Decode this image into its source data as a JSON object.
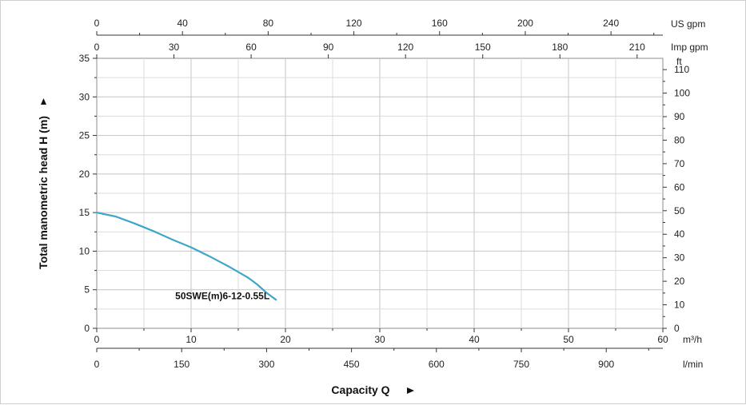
{
  "chart_data": {
    "type": "line",
    "ylabel": "Total manometric head H (m)",
    "xlabel": "Capacity Q",
    "grid": true,
    "xlim": [
      0,
      60
    ],
    "ylim": [
      0,
      35
    ],
    "x_ticks": [
      "0",
      "10",
      "20",
      "30",
      "40",
      "50",
      "60"
    ],
    "y_ticks": [
      "0",
      "5",
      "10",
      "15",
      "20",
      "25",
      "30",
      "35"
    ],
    "secondary_axes": {
      "us_gpm": {
        "unit": "US gpm",
        "max": 264.2,
        "ticks": [
          "0",
          "40",
          "80",
          "120",
          "160",
          "200",
          "240"
        ]
      },
      "imp_gpm": {
        "unit": "Imp gpm",
        "max": 220,
        "ticks": [
          "0",
          "30",
          "60",
          "90",
          "120",
          "150",
          "180",
          "210"
        ]
      },
      "m3h": {
        "unit": "m³/h"
      },
      "lmin": {
        "unit": "l/min",
        "max": 1000,
        "ticks": [
          "0",
          "150",
          "300",
          "450",
          "600",
          "750",
          "900"
        ]
      },
      "ft": {
        "unit": "ft",
        "max": 114.8,
        "ticks": [
          "0",
          "10",
          "20",
          "30",
          "40",
          "50",
          "60",
          "70",
          "80",
          "90",
          "100",
          "110"
        ]
      }
    },
    "series": [
      {
        "name": "50SWE(m)6-12-0.55L",
        "color": "#3ea6c8",
        "x": [
          0,
          2,
          4,
          6,
          8,
          10,
          12,
          14,
          16,
          17,
          18,
          19
        ],
        "y": [
          15,
          14.5,
          13.6,
          12.6,
          11.5,
          10.5,
          9.3,
          8.0,
          6.6,
          5.7,
          4.6,
          3.7
        ]
      }
    ]
  }
}
